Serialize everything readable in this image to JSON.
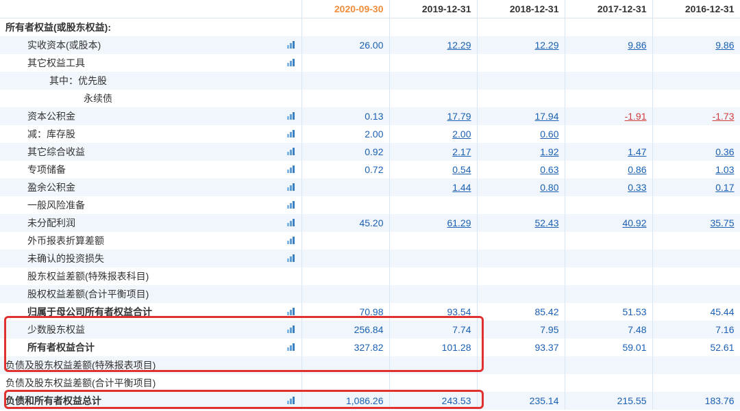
{
  "colors": {
    "header_current": "#f08c3a",
    "link": "#1a5fb4",
    "negative": "#d23c3c",
    "row_even_bg": "#f0f6fb",
    "row_odd_bg": "#ffffff",
    "border": "#d9e6f2",
    "highlight_border": "#e03030",
    "icon_bars": [
      "#7fb8e6",
      "#5a9cd6",
      "#3a7fc2"
    ]
  },
  "table": {
    "headers": [
      "",
      "2020-09-30",
      "2019-12-31",
      "2018-12-31",
      "2017-12-31",
      "2016-12-31"
    ],
    "current_col": 1,
    "rows": [
      {
        "label": "所有者权益(或股东权益):",
        "indent": 0,
        "bold": true,
        "icon": false,
        "vals": [
          "",
          "",
          "",
          "",
          ""
        ]
      },
      {
        "label": "实收资本(或股本)",
        "indent": 1,
        "bold": false,
        "icon": true,
        "vals": [
          "26.00",
          "12.29",
          "12.29",
          "9.86",
          "9.86"
        ],
        "underline_from": 1
      },
      {
        "label": "其它权益工具",
        "indent": 1,
        "bold": false,
        "icon": true,
        "vals": [
          "",
          "",
          "",
          "",
          ""
        ]
      },
      {
        "label": "其中：优先股",
        "indent": 2,
        "bold": false,
        "icon": false,
        "vals": [
          "",
          "",
          "",
          "",
          ""
        ]
      },
      {
        "label": "永续债",
        "indent": 2,
        "bold": false,
        "icon": false,
        "vals": [
          "",
          "",
          "",
          "",
          ""
        ],
        "extra_indent": true
      },
      {
        "label": "资本公积金",
        "indent": 1,
        "bold": false,
        "icon": true,
        "vals": [
          "0.13",
          "17.79",
          "17.94",
          "-1.91",
          "-1.73"
        ],
        "underline_from": 1
      },
      {
        "label": "减：库存股",
        "indent": 1,
        "bold": false,
        "icon": true,
        "vals": [
          "2.00",
          "2.00",
          "0.60",
          "",
          ""
        ],
        "underline_from": 1
      },
      {
        "label": "其它综合收益",
        "indent": 1,
        "bold": false,
        "icon": true,
        "vals": [
          "0.92",
          "2.17",
          "1.92",
          "1.47",
          "0.36"
        ],
        "underline_from": 1
      },
      {
        "label": "专项储备",
        "indent": 1,
        "bold": false,
        "icon": true,
        "vals": [
          "0.72",
          "0.54",
          "0.63",
          "0.86",
          "1.03"
        ],
        "underline_from": 1
      },
      {
        "label": "盈余公积金",
        "indent": 1,
        "bold": false,
        "icon": true,
        "vals": [
          "",
          "1.44",
          "0.80",
          "0.33",
          "0.17"
        ],
        "underline_from": 1
      },
      {
        "label": "一般风险准备",
        "indent": 1,
        "bold": false,
        "icon": true,
        "vals": [
          "",
          "",
          "",
          "",
          ""
        ]
      },
      {
        "label": "未分配利润",
        "indent": 1,
        "bold": false,
        "icon": true,
        "vals": [
          "45.20",
          "61.29",
          "52.43",
          "40.92",
          "35.75"
        ],
        "underline_from": 1
      },
      {
        "label": "外币报表折算差额",
        "indent": 1,
        "bold": false,
        "icon": true,
        "vals": [
          "",
          "",
          "",
          "",
          ""
        ]
      },
      {
        "label": "未确认的投资损失",
        "indent": 1,
        "bold": false,
        "icon": true,
        "vals": [
          "",
          "",
          "",
          "",
          ""
        ]
      },
      {
        "label": "股东权益差额(特殊报表科目)",
        "indent": 1,
        "bold": false,
        "icon": false,
        "vals": [
          "",
          "",
          "",
          "",
          ""
        ]
      },
      {
        "label": "股权权益差额(合计平衡项目)",
        "indent": 1,
        "bold": false,
        "icon": false,
        "vals": [
          "",
          "",
          "",
          "",
          ""
        ]
      },
      {
        "label": "归属于母公司所有者权益合计",
        "indent": 1,
        "bold": true,
        "icon": true,
        "vals": [
          "70.98",
          "93.54",
          "85.42",
          "51.53",
          "45.44"
        ]
      },
      {
        "label": "少数股东权益",
        "indent": 1,
        "bold": false,
        "icon": true,
        "vals": [
          "256.84",
          "7.74",
          "7.95",
          "7.48",
          "7.16"
        ]
      },
      {
        "label": "所有者权益合计",
        "indent": 1,
        "bold": true,
        "icon": true,
        "vals": [
          "327.82",
          "101.28",
          "93.37",
          "59.01",
          "52.61"
        ]
      },
      {
        "label": "负债及股东权益差额(特殊报表项目)",
        "indent": 0,
        "bold": false,
        "icon": false,
        "vals": [
          "",
          "",
          "",
          "",
          ""
        ]
      },
      {
        "label": "负债及股东权益差额(合计平衡项目)",
        "indent": 0,
        "bold": false,
        "icon": false,
        "vals": [
          "",
          "",
          "",
          "",
          ""
        ]
      },
      {
        "label": "负债和所有者权益总计",
        "indent": 0,
        "bold": true,
        "icon": true,
        "vals": [
          "1,086.26",
          "243.53",
          "235.14",
          "215.55",
          "183.76"
        ]
      }
    ]
  }
}
